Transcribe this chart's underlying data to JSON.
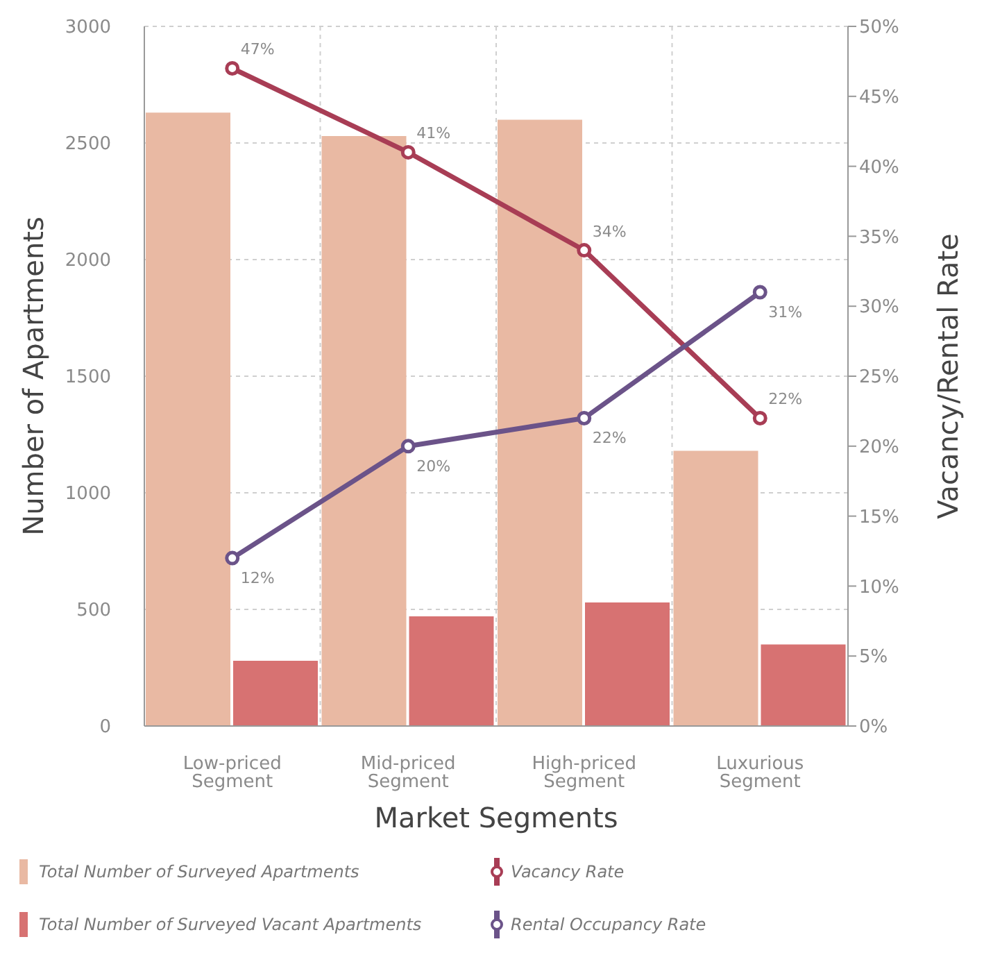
{
  "chart_data": {
    "type": "bar",
    "xlabel": "Market Segments",
    "ylabel": "Number of Apartments",
    "y2label": "Vacancy/Rental Rate",
    "categories": [
      "Low-priced Segment",
      "Mid-priced Segment",
      "High-priced Segment",
      "Luxurious Segment"
    ],
    "series": [
      {
        "name": "Total Number of Surveyed Apartments",
        "color": "#e9b9a3",
        "values": [
          2630,
          2530,
          2600,
          1180
        ]
      },
      {
        "name": "Total Number of Surveyed Vacant Apartments",
        "color": "#d77272",
        "values": [
          280,
          470,
          530,
          350
        ]
      },
      {
        "name": "Vacancy Rate",
        "type": "line",
        "axis": "y2",
        "color": "#a83d55",
        "values": [
          47,
          41,
          34,
          22
        ],
        "value_labels": [
          "47%",
          "41%",
          "34%",
          "22%"
        ]
      },
      {
        "name": "Rental Occupancy Rate",
        "type": "line",
        "axis": "y2",
        "color": "#6b5389",
        "values": [
          12,
          20,
          22,
          31
        ],
        "value_labels": [
          "12%",
          "20%",
          "22%",
          "31%"
        ]
      }
    ],
    "ylim": [
      0,
      3000
    ],
    "yticks": [
      0,
      500,
      1000,
      1500,
      2000,
      2500,
      3000
    ],
    "y2lim": [
      0,
      50
    ],
    "y2ticks": [
      {
        "value": 0,
        "label": "0%"
      },
      {
        "value": 5,
        "label": "5%"
      },
      {
        "value": 10,
        "label": "10%"
      },
      {
        "value": 15,
        "label": "15%"
      },
      {
        "value": 20,
        "label": "20%"
      },
      {
        "value": 25,
        "label": "25%"
      },
      {
        "value": 30,
        "label": "30%"
      },
      {
        "value": 35,
        "label": "35%"
      },
      {
        "value": 40,
        "label": "40%"
      },
      {
        "value": 45,
        "label": "45%"
      },
      {
        "value": 50,
        "label": "50%"
      }
    ],
    "grid": true,
    "legend": "bottom",
    "marker": "circle",
    "line_style": "solid"
  }
}
